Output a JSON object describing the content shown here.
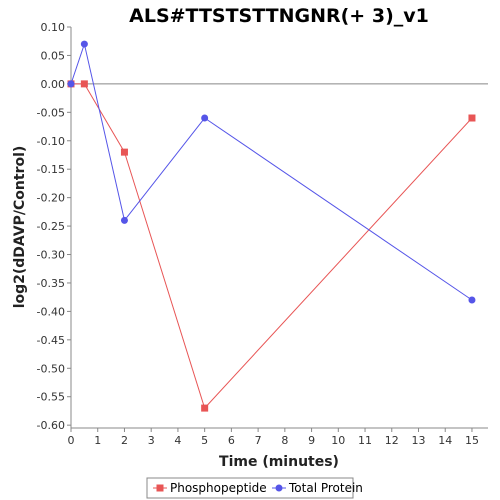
{
  "chart_data": {
    "type": "line",
    "title": "ALS#TTSTSTTNGNR(+ 3)_v1",
    "xlabel": "Time (minutes)",
    "ylabel": "log2(dDAVP/Control)",
    "xlim": [
      0,
      15.6
    ],
    "ylim": [
      -0.605,
      0.1
    ],
    "x_ticks": [
      0,
      1,
      2,
      3,
      4,
      5,
      6,
      7,
      8,
      9,
      10,
      11,
      12,
      13,
      14,
      15
    ],
    "y_ticks": [
      0.1,
      0.05,
      0.0,
      -0.05,
      -0.1,
      -0.15,
      -0.2,
      -0.25,
      -0.3,
      -0.35,
      -0.4,
      -0.45,
      -0.5,
      -0.55,
      -0.6
    ],
    "y_tick_labels": [
      "0.10",
      "0.05",
      "0.00",
      "-0.05",
      "-0.10",
      "-0.15",
      "-0.20",
      "-0.25",
      "-0.30",
      "-0.35",
      "-0.40",
      "-0.45",
      "-0.50",
      "-0.55",
      "-0.60"
    ],
    "grid": false,
    "zero_line": true,
    "legend_position": "bottom",
    "series": [
      {
        "name": "Phosphopeptide",
        "color": "#e85555",
        "marker": "square",
        "x": [
          0,
          0.5,
          2,
          5,
          15
        ],
        "y": [
          0.0,
          0.0,
          -0.12,
          -0.57,
          -0.06
        ]
      },
      {
        "name": "Total Protein",
        "color": "#5555e8",
        "marker": "circle",
        "x": [
          0,
          0.5,
          2,
          5,
          15
        ],
        "y": [
          0.0,
          0.07,
          -0.24,
          -0.06,
          -0.38
        ]
      }
    ]
  }
}
